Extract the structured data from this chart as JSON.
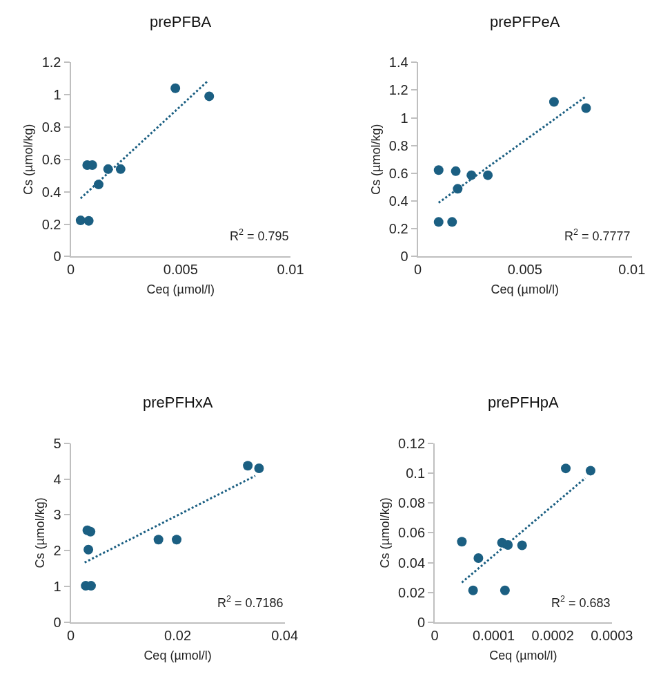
{
  "chart_data": [
    {
      "type": "scatter",
      "title": "prePFBA",
      "xlabel": "Ceq (µmol/l)",
      "ylabel": "Cs (µmol/kg)",
      "xlim": [
        0,
        0.01
      ],
      "xticks": [
        0,
        0.005,
        0.01
      ],
      "ylim": [
        0,
        1.2
      ],
      "yticks": [
        0,
        0.2,
        0.4,
        0.6,
        0.8,
        1,
        1.2
      ],
      "marker": "circle",
      "annotations": [
        "R$^{2}$ = 0.795"
      ],
      "series": [
        {
          "type": "scatter",
          "color": "#1b5f82",
          "x": [
            0.00045,
            0.00082,
            0.00075,
            0.00098,
            0.00127,
            0.0017,
            0.00227,
            0.00476,
            0.0063
          ],
          "values": [
            0.223,
            0.22,
            0.565,
            0.565,
            0.445,
            0.54,
            0.54,
            1.04,
            0.99
          ]
        },
        {
          "type": "line",
          "color": "#1b5f82",
          "line_style": "dotted",
          "marker": "none",
          "x": [
            0.00045,
            0.0062
          ],
          "values": [
            0.359,
            1.08
          ]
        }
      ]
    },
    {
      "type": "scatter",
      "title": "prePFPeA",
      "xlabel": "Ceq (µmol/l)",
      "ylabel": "Cs (µmol/kg)",
      "xlim": [
        0,
        0.01
      ],
      "xticks": [
        0,
        0.005,
        0.01
      ],
      "ylim": [
        0,
        1.4
      ],
      "yticks": [
        0,
        0.2,
        0.4,
        0.6,
        0.8,
        1,
        1.2,
        1.4
      ],
      "marker": "circle",
      "annotations": [
        "R$^{2}$ = 0.7777"
      ],
      "series": [
        {
          "type": "scatter",
          "color": "#1b5f82",
          "x": [
            0.00097,
            0.00097,
            0.0016,
            0.00177,
            0.00186,
            0.0025,
            0.00327,
            0.00636,
            0.00786
          ],
          "values": [
            0.623,
            0.249,
            0.249,
            0.615,
            0.488,
            0.586,
            0.586,
            1.115,
            1.07
          ]
        },
        {
          "type": "line",
          "color": "#1b5f82",
          "line_style": "dotted",
          "marker": "none",
          "x": [
            0.00097,
            0.0078
          ],
          "values": [
            0.388,
            1.148
          ]
        }
      ]
    },
    {
      "type": "scatter",
      "title": "prePFHxA",
      "xlabel": "Ceq (µmol/l)",
      "ylabel": "Cs (µmol/kg)",
      "xlim": [
        0,
        0.04
      ],
      "xticks": [
        0,
        0.02,
        0.04
      ],
      "ylim": [
        0,
        5
      ],
      "yticks": [
        0,
        1,
        2,
        3,
        4,
        5
      ],
      "marker": "circle",
      "annotations": [
        "R$^{2}$ = 0.7186"
      ],
      "series": [
        {
          "type": "scatter",
          "color": "#1b5f82",
          "x": [
            0.0028,
            0.0038,
            0.0033,
            0.0031,
            0.0037,
            0.0164,
            0.0198,
            0.0331,
            0.0352
          ],
          "values": [
            1.02,
            1.02,
            2.03,
            2.57,
            2.53,
            2.31,
            2.31,
            4.37,
            4.3
          ]
        },
        {
          "type": "line",
          "color": "#1b5f82",
          "line_style": "dotted",
          "marker": "none",
          "x": [
            0.0026,
            0.0345
          ],
          "values": [
            1.67,
            4.09
          ]
        }
      ]
    },
    {
      "type": "scatter",
      "title": "prePFHpA",
      "xlabel": "Ceq (µmol/l)",
      "ylabel": "Cs (µmol/kg)",
      "xlim": [
        0,
        0.0003
      ],
      "xticks": [
        0,
        0.0001,
        0.0002,
        0.0003
      ],
      "ylim": [
        0,
        0.12
      ],
      "yticks": [
        0,
        0.02,
        0.04,
        0.06,
        0.08,
        0.1,
        0.12
      ],
      "marker": "circle",
      "annotations": [
        "R$^{2}$ = 0.683"
      ],
      "series": [
        {
          "type": "scatter",
          "color": "#1b5f82",
          "x": [
            4.6e-05,
            6.5e-05,
            7.4e-05,
            0.000114,
            0.000124,
            0.000119,
            0.000148,
            0.000222,
            0.000264
          ],
          "values": [
            0.054,
            0.0214,
            0.043,
            0.0533,
            0.0518,
            0.0214,
            0.0516,
            0.1031,
            0.1016
          ]
        },
        {
          "type": "line",
          "color": "#1b5f82",
          "line_style": "dotted",
          "marker": "none",
          "x": [
            4.6e-05,
            0.000255
          ],
          "values": [
            0.0267,
            0.0966
          ]
        }
      ]
    }
  ]
}
